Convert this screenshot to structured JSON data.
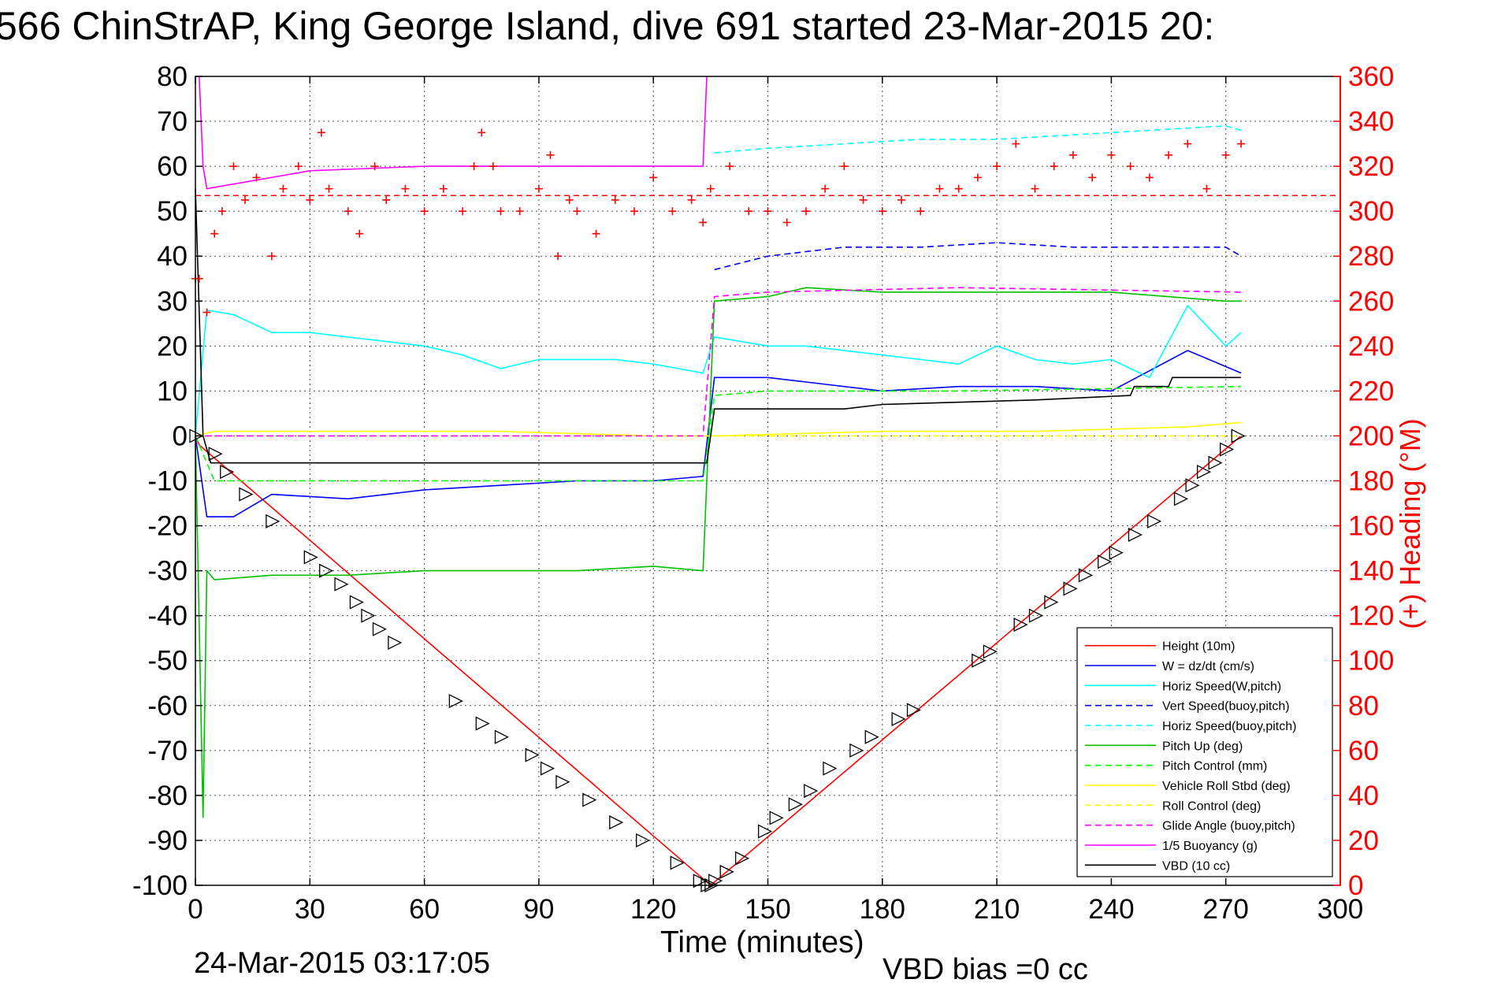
{
  "header": {
    "title": "566 ChinStrAP, King George Island, dive 691 started 23-Mar-2015 20:",
    "footer_left": "24-Mar-2015 03:17:05",
    "footer_right": "VBD bias =0 cc"
  },
  "chart_data": {
    "type": "line",
    "xlabel": "Time (minutes)",
    "ylabel": "",
    "ylabel_right": "(+) Heading (°M)",
    "xlim": [
      0,
      300
    ],
    "ylim": [
      -100,
      80
    ],
    "ylim_right": [
      0,
      360
    ],
    "x_ticks": [
      "0",
      "30",
      "60",
      "90",
      "120",
      "150",
      "180",
      "210",
      "240",
      "270",
      "300"
    ],
    "y_ticks": [
      "80",
      "70",
      "60",
      "50",
      "40",
      "30",
      "20",
      "10",
      "0",
      "-10",
      "-20",
      "-30",
      "-40",
      "-50",
      "-60",
      "-70",
      "-80",
      "-90",
      "-100"
    ],
    "y_ticks_right": [
      "360",
      "340",
      "320",
      "300",
      "280",
      "260",
      "240",
      "220",
      "200",
      "180",
      "160",
      "140",
      "120",
      "100",
      "80",
      "60",
      "40",
      "20",
      "0"
    ],
    "grid": true,
    "legend_position": "bottom-right",
    "series": [
      {
        "name": "Height (10m)",
        "color": "#ff0000",
        "style": "solid",
        "x": [
          0,
          1,
          135,
          274
        ],
        "y": [
          0,
          -2,
          -100,
          0
        ]
      },
      {
        "name": "W = dz/dt (cm/s)",
        "color": "#0000ff",
        "style": "solid",
        "x": [
          0,
          3,
          10,
          20,
          40,
          60,
          80,
          100,
          120,
          133,
          136,
          150,
          160,
          180,
          200,
          220,
          240,
          260,
          274
        ],
        "y": [
          0,
          -18,
          -18,
          -13,
          -14,
          -12,
          -11,
          -10,
          -10,
          -9,
          13,
          13,
          12,
          10,
          11,
          11,
          10,
          19,
          14
        ]
      },
      {
        "name": "Horiz Speed(W,pitch)",
        "color": "#00ffff",
        "style": "solid",
        "x": [
          0,
          3,
          10,
          20,
          30,
          40,
          50,
          60,
          70,
          80,
          90,
          100,
          110,
          120,
          133,
          136,
          150,
          160,
          180,
          200,
          210,
          220,
          230,
          240,
          250,
          260,
          270,
          274
        ],
        "y": [
          0,
          28,
          27,
          23,
          23,
          22,
          21,
          20,
          18,
          15,
          17,
          17,
          17,
          16,
          14,
          22,
          20,
          20,
          18,
          16,
          20,
          17,
          16,
          17,
          13,
          29,
          20,
          23
        ]
      },
      {
        "name": "Vert Speed(buoy,pitch)",
        "color": "#0000ff",
        "style": "dashed",
        "x": [
          136,
          150,
          170,
          190,
          210,
          230,
          250,
          270,
          274
        ],
        "y": [
          37,
          40,
          42,
          42,
          43,
          42,
          42,
          42,
          40
        ]
      },
      {
        "name": "Horiz Speed(buoy,pitch)",
        "color": "#00ffff",
        "style": "dashed",
        "x": [
          136,
          150,
          170,
          190,
          210,
          230,
          250,
          270,
          274
        ],
        "y": [
          63,
          64,
          65,
          66,
          66,
          67,
          68,
          69,
          68
        ]
      },
      {
        "name": "Pitch Up (deg)",
        "color": "#00c000",
        "style": "solid",
        "x": [
          0,
          2,
          3,
          5,
          20,
          40,
          60,
          80,
          100,
          120,
          133,
          136,
          150,
          160,
          180,
          200,
          240,
          270,
          274
        ],
        "y": [
          0,
          -85,
          -30,
          -32,
          -31,
          -31,
          -30,
          -30,
          -30,
          -29,
          -30,
          30,
          31,
          33,
          32,
          32,
          32,
          30,
          30
        ]
      },
      {
        "name": "Pitch Control (mm)",
        "color": "#00ff00",
        "style": "dashed",
        "x": [
          0,
          5,
          60,
          133,
          136,
          150,
          200,
          274
        ],
        "y": [
          0,
          -10,
          -10,
          -10,
          9,
          10,
          10,
          11
        ]
      },
      {
        "name": "Vehicle Roll Stbd (deg)",
        "color": "#ffff00",
        "style": "solid",
        "x": [
          0,
          5,
          40,
          80,
          120,
          133,
          136,
          180,
          220,
          260,
          274
        ],
        "y": [
          0,
          1,
          1,
          1,
          0,
          0,
          0,
          1,
          1,
          2,
          3
        ]
      },
      {
        "name": "Roll Control (deg)",
        "color": "#ffff00",
        "style": "dashed",
        "x": [
          0,
          5,
          40,
          80,
          133,
          136,
          200,
          274
        ],
        "y": [
          0,
          0,
          0,
          0,
          0,
          0,
          0,
          0
        ]
      },
      {
        "name": "Glide Angle (buoy,pitch)",
        "color": "#ff00ff",
        "style": "dashed",
        "x": [
          0,
          133,
          136,
          150,
          200,
          274
        ],
        "y": [
          0,
          0,
          31,
          32,
          33,
          32
        ]
      },
      {
        "name": "1/5 Buoyancy (g)",
        "color": "#ff00ff",
        "style": "solid",
        "x": [
          0,
          1,
          2,
          3,
          30,
          60,
          90,
          120,
          133,
          134
        ],
        "y": [
          80,
          80,
          60,
          55,
          59,
          60,
          60,
          60,
          60,
          80
        ]
      },
      {
        "name": "VBD (10 cc)",
        "color": "#000000",
        "style": "solid",
        "x": [
          0,
          2,
          4,
          133,
          134,
          136,
          170,
          180,
          220,
          245,
          246,
          255,
          256,
          274
        ],
        "y": [
          55,
          0,
          -6,
          -6,
          -6,
          6,
          6,
          7,
          8,
          9,
          11,
          11,
          13,
          13
        ]
      }
    ],
    "heading_series": {
      "name": "(+) Heading (°M)",
      "color": "#ff0000",
      "marker": "+",
      "axis": "right",
      "mean_line": 307,
      "x": [
        0,
        1,
        3,
        5,
        7,
        10,
        13,
        16,
        20,
        23,
        27,
        30,
        33,
        35,
        40,
        43,
        47,
        50,
        55,
        60,
        65,
        70,
        73,
        75,
        78,
        80,
        85,
        90,
        93,
        95,
        98,
        100,
        105,
        110,
        115,
        120,
        125,
        130,
        133,
        135,
        140,
        145,
        150,
        155,
        160,
        165,
        170,
        175,
        180,
        185,
        190,
        195,
        200,
        205,
        210,
        215,
        220,
        225,
        230,
        235,
        240,
        245,
        250,
        255,
        260,
        265,
        270,
        274
      ],
      "y": [
        270,
        270,
        255,
        290,
        300,
        320,
        305,
        315,
        280,
        310,
        320,
        305,
        335,
        310,
        300,
        290,
        320,
        305,
        310,
        300,
        310,
        300,
        320,
        335,
        320,
        300,
        300,
        310,
        325,
        280,
        305,
        300,
        290,
        305,
        300,
        315,
        300,
        305,
        295,
        310,
        320,
        300,
        300,
        295,
        300,
        310,
        320,
        305,
        300,
        305,
        300,
        310,
        310,
        315,
        320,
        330,
        310,
        320,
        325,
        315,
        325,
        320,
        315,
        325,
        330,
        310,
        325,
        330
      ]
    },
    "triangle_markers": {
      "x": [
        0,
        5,
        8,
        13,
        20,
        30,
        34,
        38,
        42,
        45,
        48,
        52,
        68,
        75,
        80,
        88,
        92,
        96,
        103,
        110,
        117,
        126,
        132,
        134,
        135,
        136,
        139,
        143,
        149,
        152,
        157,
        161,
        166,
        173,
        177,
        184,
        188,
        205,
        208,
        216,
        220,
        224,
        229,
        233,
        238,
        241,
        246,
        251,
        258,
        261,
        264,
        267,
        270,
        273
      ],
      "y": [
        0,
        -4,
        -8,
        -13,
        -19,
        -27,
        -30,
        -33,
        -37,
        -40,
        -43,
        -46,
        -59,
        -64,
        -67,
        -71,
        -74,
        -77,
        -81,
        -86,
        -90,
        -95,
        -99,
        -100,
        -100,
        -99,
        -97,
        -94,
        -88,
        -85,
        -82,
        -79,
        -74,
        -70,
        -67,
        -63,
        -61,
        -50,
        -48,
        -42,
        -40,
        -37,
        -34,
        -31,
        -28,
        -26,
        -22,
        -19,
        -14,
        -11,
        -8,
        -6,
        -3,
        0
      ]
    }
  }
}
